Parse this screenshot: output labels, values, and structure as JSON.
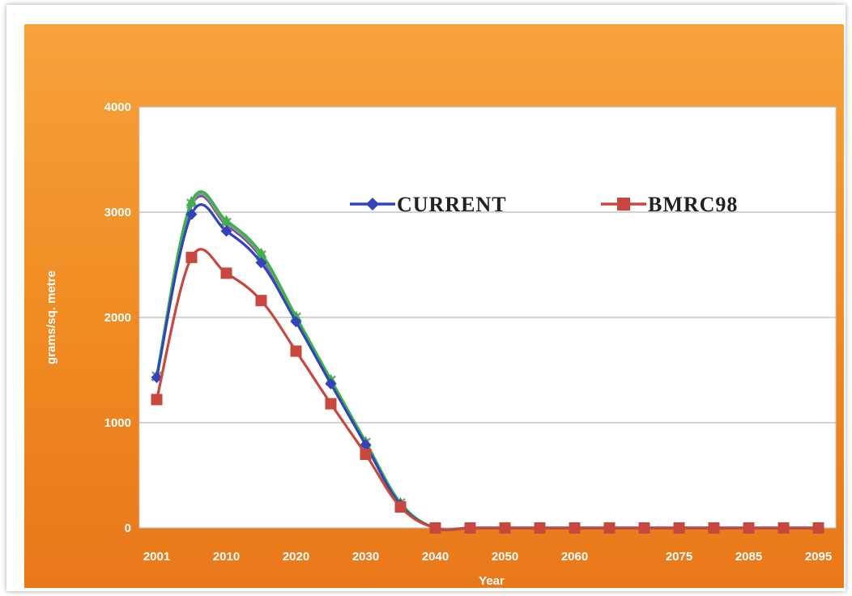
{
  "chart_data": {
    "type": "line",
    "title": "",
    "xlabel": "Year",
    "ylabel": "grams/sq. metre",
    "ylim": [
      0,
      4000
    ],
    "yticks": [
      "0",
      "1000",
      "2000",
      "3000",
      "4000"
    ],
    "xticks": [
      "2001",
      "2010",
      "2020",
      "2030",
      "2040",
      "2050",
      "2060",
      "2075",
      "2085",
      "2095"
    ],
    "grid": true,
    "legend_position": "upper-middle",
    "x": [
      2001,
      2005,
      2010,
      2015,
      2020,
      2025,
      2030,
      2035,
      2040,
      2045,
      2050,
      2055,
      2060,
      2065,
      2070,
      2075,
      2080,
      2085,
      2090,
      2095
    ],
    "series": [
      {
        "name": "CURRENT",
        "color": "#3344bb",
        "marker": "diamond",
        "values": [
          1430,
          2980,
          2820,
          2520,
          1960,
          1370,
          790,
          220,
          0,
          0,
          0,
          0,
          0,
          0,
          0,
          0,
          0,
          0,
          0,
          0
        ]
      },
      {
        "name": "BMRC98",
        "color": "#c8473f",
        "marker": "square",
        "values": [
          1220,
          2570,
          2420,
          2160,
          1680,
          1180,
          700,
          200,
          0,
          0,
          0,
          0,
          0,
          0,
          0,
          0,
          0,
          0,
          0,
          0
        ]
      },
      {
        "color": "#3bb34a",
        "marker": "triangle",
        "values": [
          1450,
          3100,
          2920,
          2610,
          2010,
          1410,
          820,
          240,
          0,
          0,
          0,
          0,
          0,
          0,
          0,
          0,
          0,
          0,
          0,
          0
        ]
      },
      {
        "color": "#8a9a8a",
        "marker": "x",
        "values": [
          1440,
          3080,
          2900,
          2590,
          2000,
          1400,
          810,
          235,
          0,
          0,
          0,
          0,
          0,
          0,
          0,
          0,
          0,
          0,
          0,
          0
        ]
      },
      {
        "color": "#7b4fa8",
        "marker": "none",
        "values": [
          1435,
          3060,
          2880,
          2570,
          1990,
          1390,
          805,
          230,
          0,
          0,
          0,
          0,
          0,
          0,
          0,
          0,
          0,
          0,
          0,
          0
        ]
      }
    ]
  }
}
